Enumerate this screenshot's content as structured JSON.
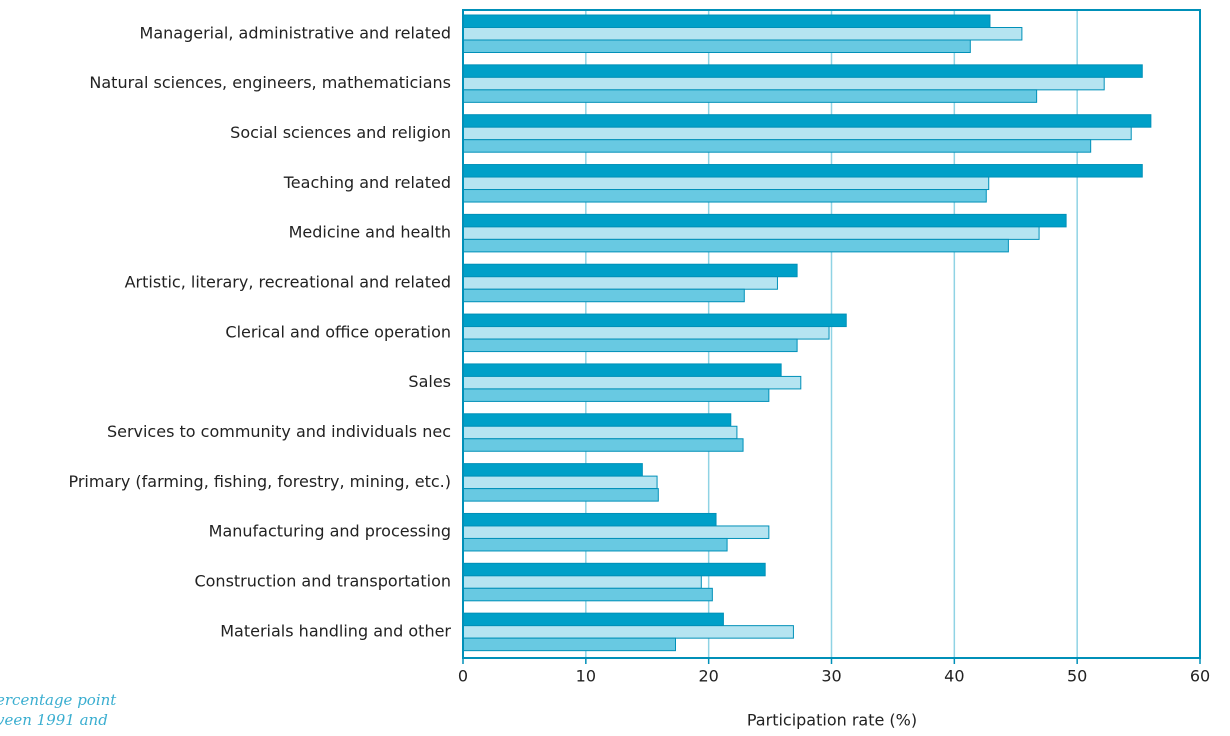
{
  "chart_data": {
    "type": "bar",
    "orientation": "horizontal",
    "x_label": "Participation rate (%)",
    "annotations": [
      "ercentage point",
      "veen 1991 and"
    ],
    "categories": [
      "Managerial, administrative and related",
      "Natural sciences, engineers, mathematicians",
      "Social sciences and religion",
      "Teaching and related",
      "Medicine and health",
      "Artistic, literary, recreational and related",
      "Clerical and office operation",
      "Sales",
      "Services to community and individuals nec",
      "Primary (farming, fishing, forestry, mining, etc.)",
      "Manufacturing and processing",
      "Construction and transportation",
      "Materials handling and other"
    ],
    "series": [
      {
        "color": "#00a0c8",
        "values": [
          42.9,
          55.3,
          56.0,
          55.3,
          49.1,
          27.2,
          31.2,
          25.9,
          21.8,
          14.6,
          20.6,
          24.6,
          21.2
        ]
      },
      {
        "color": "#b5e4f1",
        "values": [
          45.5,
          52.2,
          54.4,
          42.8,
          46.9,
          25.6,
          29.8,
          27.5,
          22.3,
          15.8,
          24.9,
          19.4,
          26.9
        ]
      },
      {
        "color": "#68c9e2",
        "values": [
          41.3,
          46.7,
          51.1,
          42.6,
          44.4,
          22.9,
          27.2,
          24.9,
          22.8,
          15.9,
          21.5,
          20.3,
          17.3
        ]
      }
    ],
    "xlim": [
      0,
      60
    ],
    "xticks": [
      0,
      10,
      20,
      30,
      40,
      50,
      60
    ],
    "grid": true
  }
}
